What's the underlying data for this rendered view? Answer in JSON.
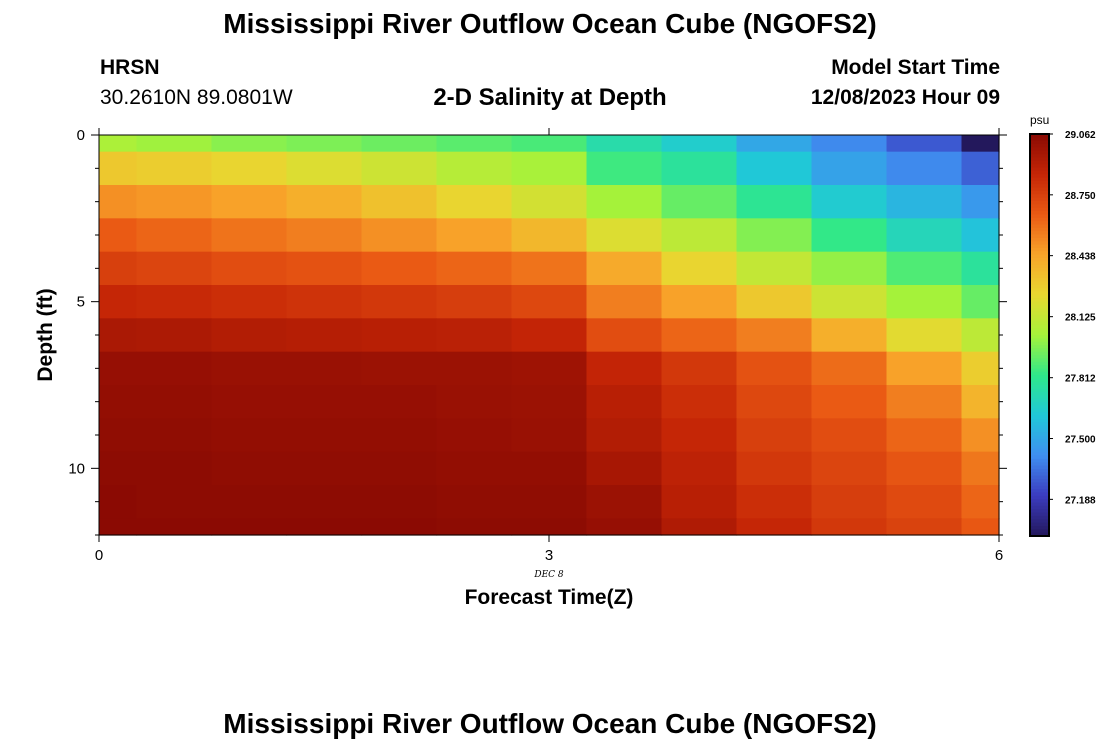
{
  "header": {
    "title": "Mississippi River Outflow Ocean Cube (NGOFS2)",
    "station": "HRSN",
    "coordinates": "30.2610N  89.0801W",
    "subtitle": "2-D Salinity at Depth",
    "start_label": "Model Start Time",
    "start_value": "12/08/2023 Hour 09"
  },
  "footer": {
    "title": "Mississippi River Outflow Ocean Cube (NGOFS2)"
  },
  "chart_data": {
    "type": "heatmap",
    "title": "2-D Salinity at Depth",
    "xlabel": "Forecast Time(Z)",
    "ylabel": "Depth (ft)",
    "x_sublabel": "DEC 8",
    "xlim": [
      0,
      6
    ],
    "ylim": [
      0,
      12
    ],
    "x_ticks": [
      "0",
      "3",
      "6"
    ],
    "y_ticks": [
      "0",
      "5",
      "10"
    ],
    "y_reversed": true,
    "colorbar": {
      "units": "psu",
      "min": 27.0,
      "max": 29.062,
      "tick_labels": [
        "29.062",
        "28.750",
        "28.438",
        "28.125",
        "27.812",
        "27.500",
        "27.188"
      ],
      "colors": [
        "#23185c",
        "#3b3bbf",
        "#3f8ff0",
        "#20c8d8",
        "#2fe88a",
        "#a6f23a",
        "#e8d830",
        "#f8a42a",
        "#ea5a14",
        "#c42506",
        "#8a0a03"
      ]
    },
    "x_times": [
      0,
      0.5,
      1,
      1.5,
      2,
      2.5,
      3,
      3.5,
      4,
      4.5,
      5,
      5.5,
      6
    ],
    "depths": [
      0,
      1,
      2,
      3,
      4,
      5,
      6,
      7,
      8,
      9,
      10,
      11,
      12
    ],
    "salinity_psu": [
      [
        28.05,
        28.02,
        27.98,
        27.96,
        27.93,
        27.9,
        27.87,
        27.74,
        27.65,
        27.5,
        27.4,
        27.28,
        27.0
      ],
      [
        28.3,
        28.28,
        28.25,
        28.2,
        28.15,
        28.08,
        28.04,
        27.85,
        27.78,
        27.62,
        27.48,
        27.4,
        27.3
      ],
      [
        28.5,
        28.48,
        28.45,
        28.4,
        28.33,
        28.25,
        28.17,
        28.03,
        27.92,
        27.8,
        27.64,
        27.55,
        27.45
      ],
      [
        28.65,
        28.62,
        28.58,
        28.55,
        28.5,
        28.45,
        28.37,
        28.2,
        28.1,
        27.97,
        27.83,
        27.7,
        27.6
      ],
      [
        28.75,
        28.73,
        28.7,
        28.68,
        28.65,
        28.62,
        28.58,
        28.42,
        28.25,
        28.12,
        28.0,
        27.88,
        27.78
      ],
      [
        28.85,
        28.84,
        28.82,
        28.8,
        28.78,
        28.76,
        28.72,
        28.55,
        28.45,
        28.3,
        28.15,
        28.03,
        27.92
      ],
      [
        28.95,
        28.94,
        28.92,
        28.91,
        28.9,
        28.89,
        28.86,
        28.7,
        28.62,
        28.55,
        28.4,
        28.22,
        28.1
      ],
      [
        29.02,
        29.02,
        29.01,
        29.01,
        29.0,
        29.0,
        28.99,
        28.86,
        28.78,
        28.68,
        28.6,
        28.45,
        28.28
      ],
      [
        29.03,
        29.03,
        29.02,
        29.02,
        29.02,
        29.01,
        29.0,
        28.9,
        28.82,
        28.72,
        28.65,
        28.55,
        28.38
      ],
      [
        29.04,
        29.04,
        29.03,
        29.03,
        29.03,
        29.02,
        29.01,
        28.92,
        28.85,
        28.75,
        28.7,
        28.62,
        28.5
      ],
      [
        29.05,
        29.05,
        29.04,
        29.04,
        29.04,
        29.03,
        29.03,
        28.96,
        28.88,
        28.78,
        28.73,
        28.67,
        28.57
      ],
      [
        29.06,
        29.05,
        29.05,
        29.05,
        29.05,
        29.04,
        29.04,
        29.0,
        28.9,
        28.82,
        28.76,
        28.71,
        28.62
      ],
      [
        29.06,
        29.06,
        29.06,
        29.06,
        29.06,
        29.05,
        29.05,
        29.02,
        28.93,
        28.85,
        28.78,
        28.74,
        28.66
      ]
    ]
  }
}
